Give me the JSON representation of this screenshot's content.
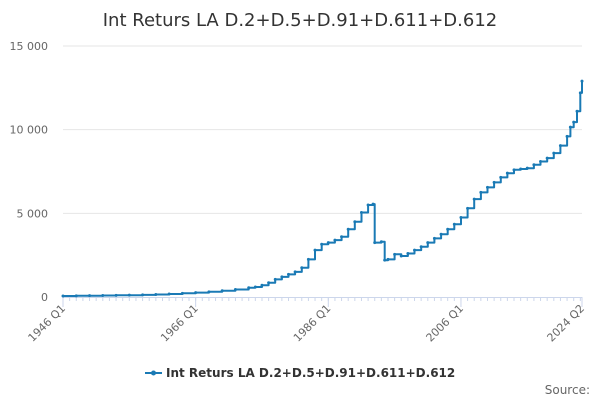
{
  "chart_data": {
    "type": "line",
    "title": "Int Returs LA D.2+D.5+D.91+D.611+D.612",
    "xlabel": "",
    "ylabel": "",
    "ylim": [
      0,
      15000
    ],
    "y_ticks": [
      0,
      5000,
      10000,
      15000
    ],
    "y_tick_labels": [
      "0",
      "5 000",
      "10 000",
      "15 000"
    ],
    "x_range": [
      1946,
      2024.25
    ],
    "x_ticks": [
      1946,
      1966,
      1986,
      2006,
      2024.25
    ],
    "x_tick_labels": [
      "1946 Q1",
      "1966 Q1",
      "1986 Q1",
      "2006 Q1",
      "2024 Q2"
    ],
    "grid": "horizontal",
    "legend_position": "bottom",
    "source_text": "Source:",
    "color": "#1a7ab5",
    "series": [
      {
        "name": "Int Returs LA D.2+D.5+D.91+D.611+D.612",
        "points": [
          [
            1946,
            60
          ],
          [
            1948,
            70
          ],
          [
            1950,
            80
          ],
          [
            1952,
            90
          ],
          [
            1954,
            100
          ],
          [
            1956,
            110
          ],
          [
            1958,
            125
          ],
          [
            1960,
            150
          ],
          [
            1962,
            180
          ],
          [
            1964,
            220
          ],
          [
            1966,
            260
          ],
          [
            1968,
            310
          ],
          [
            1970,
            370
          ],
          [
            1972,
            450
          ],
          [
            1974,
            550
          ],
          [
            1975,
            600
          ],
          [
            1976,
            700
          ],
          [
            1977,
            850
          ],
          [
            1978,
            1050
          ],
          [
            1979,
            1200
          ],
          [
            1980,
            1350
          ],
          [
            1981,
            1500
          ],
          [
            1982,
            1750
          ],
          [
            1983,
            2250
          ],
          [
            1984,
            2800
          ],
          [
            1985,
            3150
          ],
          [
            1986,
            3250
          ],
          [
            1987,
            3400
          ],
          [
            1988,
            3600
          ],
          [
            1989,
            4050
          ],
          [
            1990,
            4500
          ],
          [
            1991,
            5050
          ],
          [
            1992,
            5500
          ],
          [
            1992.75,
            5550
          ],
          [
            1993,
            3250
          ],
          [
            1994,
            3300
          ],
          [
            1994.5,
            2200
          ],
          [
            1995,
            2250
          ],
          [
            1996,
            2550
          ],
          [
            1997,
            2450
          ],
          [
            1998,
            2600
          ],
          [
            1999,
            2800
          ],
          [
            2000,
            3000
          ],
          [
            2001,
            3250
          ],
          [
            2002,
            3500
          ],
          [
            2003,
            3750
          ],
          [
            2004,
            4050
          ],
          [
            2005,
            4350
          ],
          [
            2006,
            4750
          ],
          [
            2007,
            5300
          ],
          [
            2008,
            5850
          ],
          [
            2009,
            6250
          ],
          [
            2010,
            6550
          ],
          [
            2011,
            6850
          ],
          [
            2012,
            7150
          ],
          [
            2013,
            7400
          ],
          [
            2014,
            7600
          ],
          [
            2015,
            7650
          ],
          [
            2016,
            7700
          ],
          [
            2017,
            7900
          ],
          [
            2018,
            8100
          ],
          [
            2019,
            8300
          ],
          [
            2020,
            8600
          ],
          [
            2021,
            9050
          ],
          [
            2022,
            9600
          ],
          [
            2022.5,
            10150
          ],
          [
            2023,
            10450
          ],
          [
            2023.5,
            11100
          ],
          [
            2024,
            12200
          ],
          [
            2024.25,
            12900
          ]
        ]
      }
    ]
  }
}
